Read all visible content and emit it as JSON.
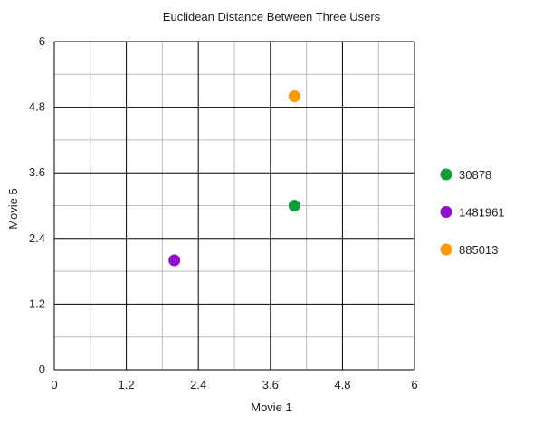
{
  "chart_data": {
    "type": "scatter",
    "title": "Euclidean Distance Between Three Users",
    "xlabel": "Movie 1",
    "ylabel": "Movie 5",
    "xlim": [
      0,
      6
    ],
    "ylim": [
      0,
      6
    ],
    "xticks": [
      0,
      1.2,
      2.4,
      3.6,
      4.8,
      6
    ],
    "yticks": [
      0,
      1.2,
      2.4,
      3.6,
      4.8,
      6
    ],
    "grid": true,
    "legend_position": "right",
    "series": [
      {
        "name": "30878",
        "color": "#0f9d3a",
        "points": [
          {
            "x": 4,
            "y": 3
          }
        ]
      },
      {
        "name": "1481961",
        "color": "#8e0fcc",
        "points": [
          {
            "x": 2,
            "y": 2
          }
        ]
      },
      {
        "name": "885013",
        "color": "#ff9900",
        "points": [
          {
            "x": 4,
            "y": 5
          }
        ]
      }
    ]
  }
}
